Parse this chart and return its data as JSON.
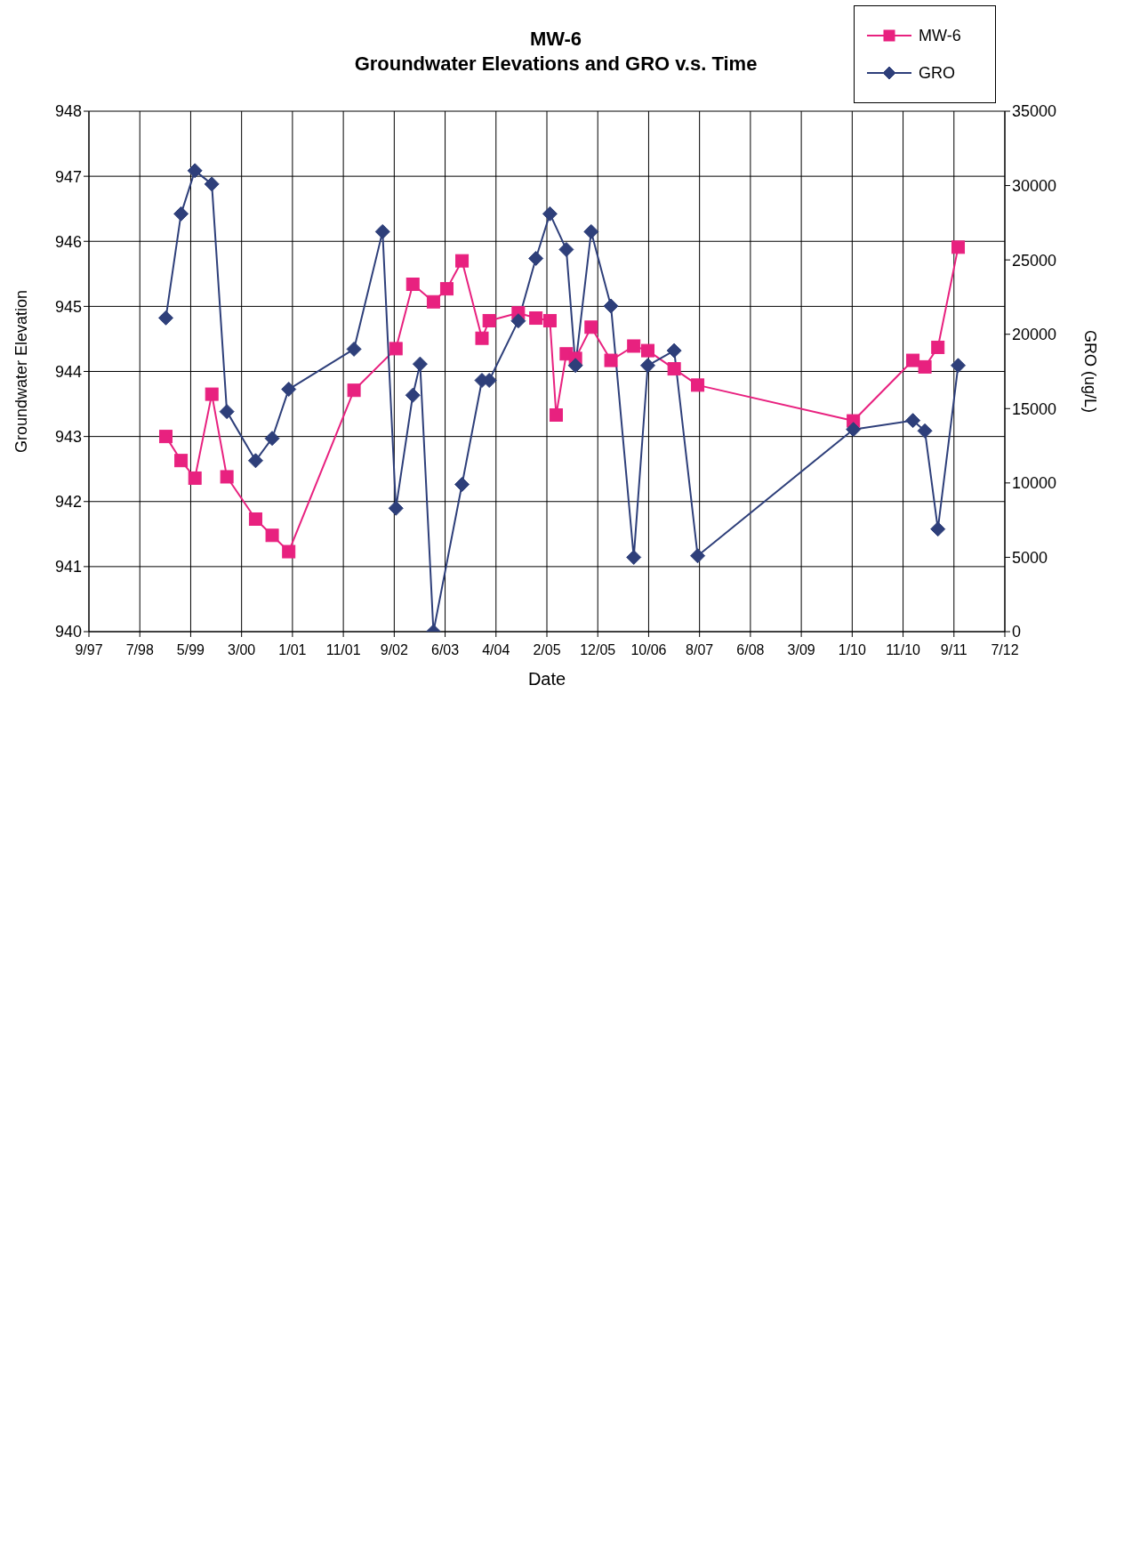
{
  "chart_data": {
    "type": "line",
    "title": "MW-6",
    "subtitle": "Groundwater Elevations and GRO v.s. Time",
    "xlabel": "Date",
    "ylabel": "Groundwater Elevation",
    "y2label": "GRO (ug/L)",
    "xlim": [
      "1997-09-20",
      "2012-07-21"
    ],
    "xticks": [
      {
        "value": "1997-09-20",
        "label": "9/97"
      },
      {
        "value": "1998-07-18",
        "label": "7/98"
      },
      {
        "value": "1999-05-15",
        "label": "5/99"
      },
      {
        "value": "2000-03-11",
        "label": "3/00"
      },
      {
        "value": "2001-01-06",
        "label": "1/01"
      },
      {
        "value": "2001-11-03",
        "label": "11/01"
      },
      {
        "value": "2002-08-31",
        "label": "9/02"
      },
      {
        "value": "2003-06-28",
        "label": "6/03"
      },
      {
        "value": "2004-04-24",
        "label": "4/04"
      },
      {
        "value": "2005-02-19",
        "label": "2/05"
      },
      {
        "value": "2005-12-17",
        "label": "12/05"
      },
      {
        "value": "2006-10-14",
        "label": "10/06"
      },
      {
        "value": "2007-08-11",
        "label": "8/07"
      },
      {
        "value": "2008-06-07",
        "label": "6/08"
      },
      {
        "value": "2009-04-04",
        "label": "3/09"
      },
      {
        "value": "2010-01-30",
        "label": "1/10"
      },
      {
        "value": "2010-11-27",
        "label": "11/10"
      },
      {
        "value": "2011-09-24",
        "label": "9/11"
      },
      {
        "value": "2012-07-21",
        "label": "7/12"
      }
    ],
    "ylim": [
      940,
      948
    ],
    "yticks": [
      940,
      941,
      942,
      943,
      944,
      945,
      946,
      947,
      948
    ],
    "y2lim": [
      0,
      35000
    ],
    "y2ticks": [
      0,
      5000,
      10000,
      15000,
      20000,
      25000,
      30000,
      35000
    ],
    "grid": true,
    "legend": "top right",
    "line_style": "solid",
    "series": [
      {
        "name": "MW-6",
        "color": "#e8217f",
        "marker": "square",
        "x": [
          "1998-12-19",
          "1999-03-19",
          "1999-06-09",
          "1999-09-17",
          "1999-12-15",
          "2000-06-02",
          "2000-09-08",
          "2000-12-15",
          "2002-01-05",
          "2002-09-10",
          "2002-12-19",
          "2003-04-20",
          "2003-07-08",
          "2003-10-06",
          "2004-02-01",
          "2004-03-15",
          "2004-09-03",
          "2004-12-16",
          "2005-03-09",
          "2005-04-15",
          "2005-06-14",
          "2005-08-07",
          "2005-11-08",
          "2006-03-05",
          "2006-07-18",
          "2006-10-09",
          "2007-03-14",
          "2007-07-31",
          "2010-02-06",
          "2011-01-24",
          "2011-04-05",
          "2011-06-21",
          "2011-10-19"
        ],
        "values": [
          943.0,
          942.63,
          942.36,
          943.65,
          942.38,
          941.73,
          941.48,
          941.23,
          943.71,
          944.35,
          945.34,
          945.07,
          945.27,
          945.7,
          944.51,
          944.78,
          944.9,
          944.82,
          944.78,
          943.33,
          944.27,
          944.2,
          944.68,
          944.17,
          944.39,
          944.32,
          944.04,
          943.79,
          943.24,
          944.17,
          944.07,
          944.37,
          945.91
        ]
      },
      {
        "name": "GRO",
        "color": "#2e3f7a",
        "marker": "diamond",
        "axis": "y2",
        "x": [
          "1998-12-19",
          "1999-03-19",
          "1999-06-09",
          "1999-09-17",
          "1999-12-15",
          "2000-06-02",
          "2000-09-08",
          "2000-12-15",
          "2002-01-05",
          "2002-06-23",
          "2002-09-10",
          "2002-12-19",
          "2003-01-31",
          "2003-04-20",
          "2003-10-06",
          "2004-02-01",
          "2004-03-15",
          "2004-09-03",
          "2004-12-16",
          "2005-03-09",
          "2005-06-14",
          "2005-08-07",
          "2005-11-08",
          "2006-03-05",
          "2006-07-18",
          "2006-10-09",
          "2007-03-14",
          "2007-07-31",
          "2010-02-06",
          "2011-01-24",
          "2011-04-05",
          "2011-06-21",
          "2011-10-19"
        ],
        "values": [
          21100,
          28100,
          31000,
          30100,
          14800,
          11500,
          13000,
          16300,
          19000,
          26900,
          8300,
          15900,
          18000,
          0,
          9900,
          16900,
          16900,
          20900,
          25100,
          28100,
          25700,
          17900,
          26900,
          21900,
          5000,
          17900,
          18900,
          5100,
          13600,
          14200,
          13500,
          6900,
          17900
        ]
      }
    ]
  }
}
